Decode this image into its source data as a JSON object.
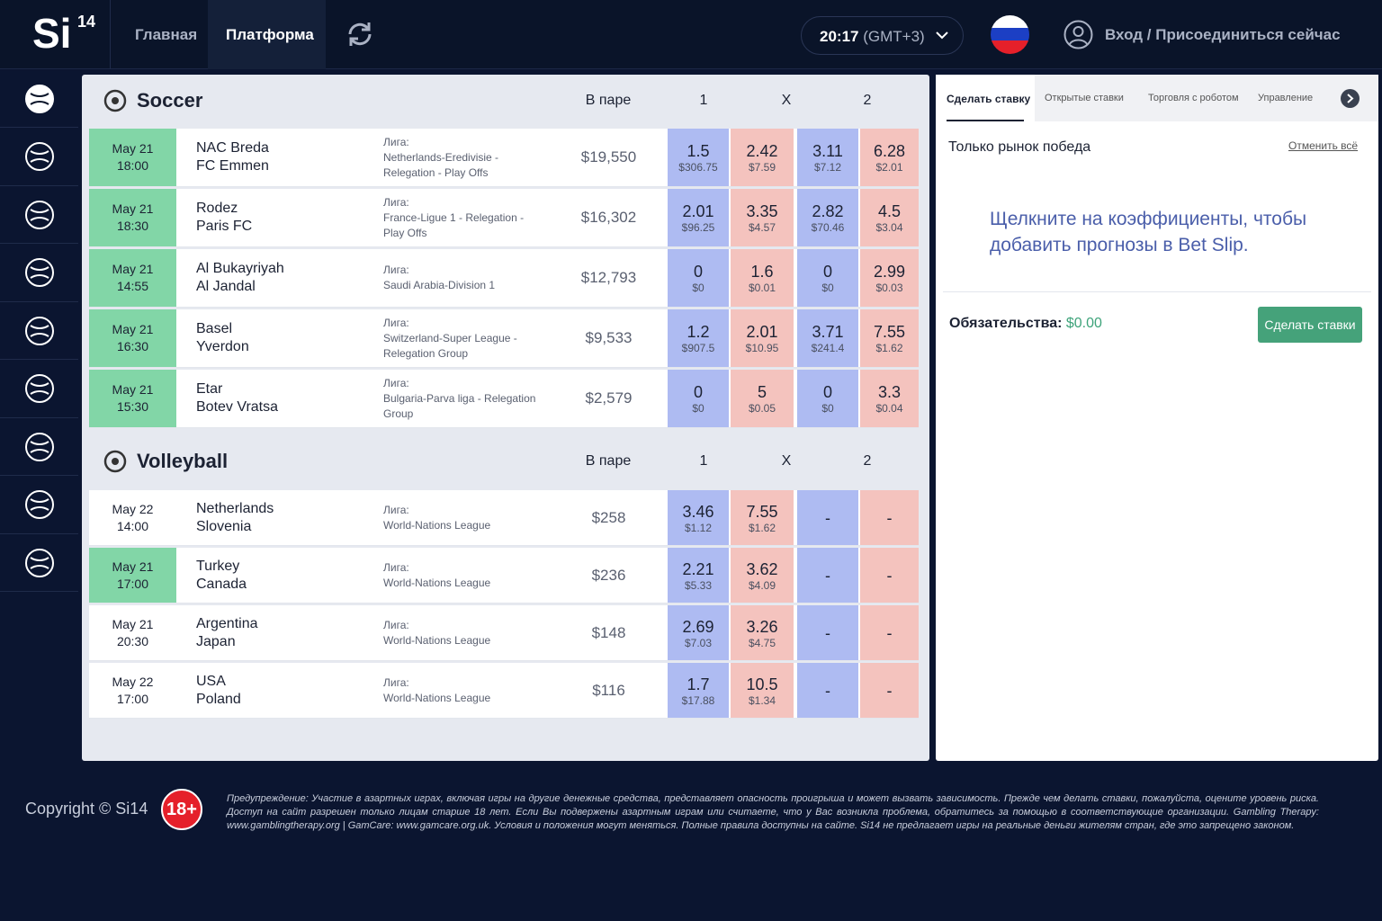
{
  "header": {
    "logo": "Si",
    "logo_sup": "14",
    "nav": [
      "Главная",
      "Платформа"
    ],
    "time": "20:17",
    "timezone": "(GMT+3)",
    "login": "Вход",
    "separator": "/",
    "join": "Присоединиться сейчас"
  },
  "sports": [
    {
      "name": "Soccer",
      "col_matched": "В паре",
      "col_1": "1",
      "col_x": "X",
      "col_2": "2",
      "matches": [
        {
          "date": "May 21",
          "time": "18:00",
          "highlight": true,
          "team1": "NAC Breda",
          "team2": "FC Emmen",
          "league_label": "Лига:",
          "league": "Netherlands-Eredivisie - Relegation - Play Offs",
          "matched": "$19,550",
          "odds": [
            {
              "price": "1.5",
              "amount": "$306.75"
            },
            {
              "price": "2.42",
              "amount": "$7.59"
            },
            {
              "price": "3.11",
              "amount": "$7.12"
            },
            {
              "price": "6.28",
              "amount": "$2.01"
            }
          ]
        },
        {
          "date": "May 21",
          "time": "18:30",
          "highlight": true,
          "team1": "Rodez",
          "team2": "Paris FC",
          "league_label": "Лига:",
          "league": "France-Ligue 1 - Relegation - Play Offs",
          "matched": "$16,302",
          "odds": [
            {
              "price": "2.01",
              "amount": "$96.25"
            },
            {
              "price": "3.35",
              "amount": "$4.57"
            },
            {
              "price": "2.82",
              "amount": "$70.46"
            },
            {
              "price": "4.5",
              "amount": "$3.04"
            }
          ]
        },
        {
          "date": "May 21",
          "time": "14:55",
          "highlight": true,
          "team1": "Al Bukayriyah",
          "team2": "Al Jandal",
          "league_label": "Лига:",
          "league": "Saudi Arabia-Division 1",
          "matched": "$12,793",
          "odds": [
            {
              "price": "0",
              "amount": "$0"
            },
            {
              "price": "1.6",
              "amount": "$0.01"
            },
            {
              "price": "0",
              "amount": "$0"
            },
            {
              "price": "2.99",
              "amount": "$0.03"
            }
          ]
        },
        {
          "date": "May 21",
          "time": "16:30",
          "highlight": true,
          "team1": "Basel",
          "team2": "Yverdon",
          "league_label": "Лига:",
          "league": "Switzerland-Super League - Relegation Group",
          "matched": "$9,533",
          "odds": [
            {
              "price": "1.2",
              "amount": "$907.5"
            },
            {
              "price": "2.01",
              "amount": "$10.95"
            },
            {
              "price": "3.71",
              "amount": "$241.4"
            },
            {
              "price": "7.55",
              "amount": "$1.62"
            }
          ]
        },
        {
          "date": "May 21",
          "time": "15:30",
          "highlight": true,
          "team1": "Etar",
          "team2": "Botev Vratsa",
          "league_label": "Лига:",
          "league": "Bulgaria-Parva liga - Relegation Group",
          "matched": "$2,579",
          "odds": [
            {
              "price": "0",
              "amount": "$0"
            },
            {
              "price": "5",
              "amount": "$0.05"
            },
            {
              "price": "0",
              "amount": "$0"
            },
            {
              "price": "3.3",
              "amount": "$0.04"
            }
          ]
        }
      ]
    },
    {
      "name": "Volleyball",
      "col_matched": "В паре",
      "col_1": "1",
      "col_x": "X",
      "col_2": "2",
      "matches": [
        {
          "date": "May 22",
          "time": "14:00",
          "highlight": false,
          "team1": "Netherlands",
          "team2": "Slovenia",
          "league_label": "Лига:",
          "league": "World-Nations League",
          "matched": "$258",
          "odds": [
            {
              "price": "3.46",
              "amount": "$1.12"
            },
            {
              "price": "7.55",
              "amount": "$1.62"
            },
            {
              "price": "-"
            },
            {
              "price": "-"
            }
          ]
        },
        {
          "date": "May 21",
          "time": "17:00",
          "highlight": true,
          "team1": "Turkey",
          "team2": "Canada",
          "league_label": "Лига:",
          "league": "World-Nations League",
          "matched": "$236",
          "odds": [
            {
              "price": "2.21",
              "amount": "$5.33"
            },
            {
              "price": "3.62",
              "amount": "$4.09"
            },
            {
              "price": "-"
            },
            {
              "price": "-"
            }
          ]
        },
        {
          "date": "May 21",
          "time": "20:30",
          "highlight": false,
          "team1": "Argentina",
          "team2": "Japan",
          "league_label": "Лига:",
          "league": "World-Nations League",
          "matched": "$148",
          "odds": [
            {
              "price": "2.69",
              "amount": "$7.03"
            },
            {
              "price": "3.26",
              "amount": "$4.75"
            },
            {
              "price": "-"
            },
            {
              "price": "-"
            }
          ]
        },
        {
          "date": "May 22",
          "time": "17:00",
          "highlight": false,
          "team1": "USA",
          "team2": "Poland",
          "league_label": "Лига:",
          "league": "World-Nations League",
          "matched": "$116",
          "odds": [
            {
              "price": "1.7",
              "amount": "$17.88"
            },
            {
              "price": "10.5",
              "amount": "$1.34"
            },
            {
              "price": "-"
            },
            {
              "price": "-"
            }
          ]
        }
      ]
    }
  ],
  "betslip": {
    "tabs": [
      "Сделать ставку",
      "Открытые ставки",
      "Торговля с роботом",
      "Управление"
    ],
    "market": "Только рынок победа",
    "cancel": "Отменить всё",
    "hint": "Щелкните на коэффициенты, чтобы добавить прогнозы в Bet Slip.",
    "liabilities_label": "Обязательства:",
    "liabilities": "$0.00",
    "button": "Сделать ставки"
  },
  "footer": {
    "copyright": "Copyright © Si14",
    "age": "18+",
    "warning": "Предупреждение: Участие в азартных играх, включая игры на другие денежные средства, представляет опасность проигрыша и может вызвать зависимость. Прежде чем делать ставки, пожалуйста, оцените уровень риска. Доступ на сайт разрешен только лицам старше 18 лет. Если Вы подвержены азартным играм или считаете, что у Вас возникла проблема, обратитесь за помощью в соответствующие организации. Gambling Therapy: www.gamblingtherapy.org | GamCare: www.gamcare.org.uk. Условия и положения могут меняться. Полные правила доступны на сайте. Si14 не предлагает игры на реальные деньги жителям стран, где это запрещено законом."
  }
}
